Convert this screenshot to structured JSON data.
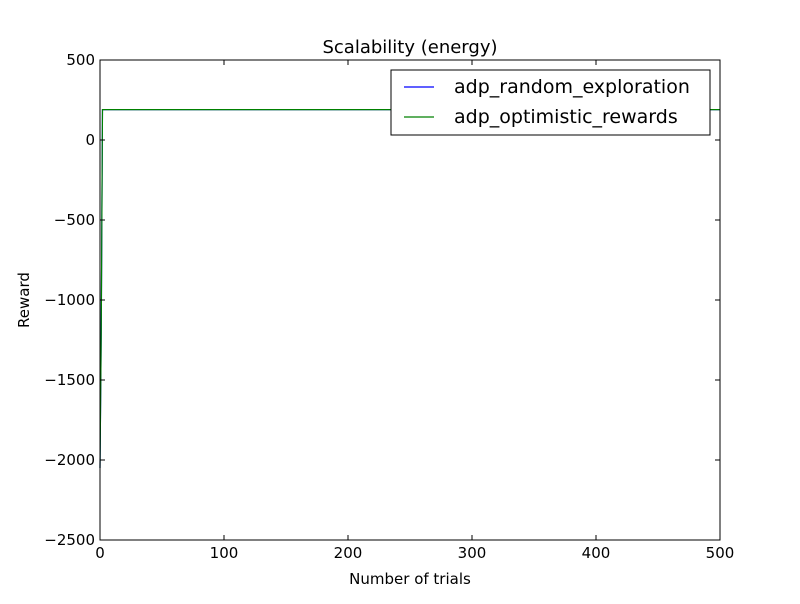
{
  "chart_data": {
    "type": "line",
    "title": "Scalability (energy)",
    "xlabel": "Number of trials",
    "ylabel": "Reward",
    "xlim": [
      0,
      500
    ],
    "ylim": [
      -2500,
      500
    ],
    "xticks": [
      0,
      100,
      200,
      300,
      400,
      500
    ],
    "yticks": [
      500,
      0,
      -500,
      -1000,
      -1500,
      -2000,
      -2500
    ],
    "xtick_labels": [
      "0",
      "100",
      "200",
      "300",
      "400",
      "500"
    ],
    "ytick_labels": [
      "500",
      "0",
      "−500",
      "−1000",
      "−1500",
      "−2000",
      "−2500"
    ],
    "grid": false,
    "legend_position": "top-right",
    "series": [
      {
        "name": "adp_random_exploration",
        "color": "#0000ff",
        "x": [
          0,
          1,
          2,
          3,
          500
        ],
        "y": [
          -2050,
          -1200,
          190,
          190,
          190
        ]
      },
      {
        "name": "adp_optimistic_rewards",
        "color": "#008000",
        "x": [
          0,
          1,
          2,
          3,
          500
        ],
        "y": [
          -2050,
          -1200,
          190,
          190,
          190
        ]
      }
    ]
  }
}
